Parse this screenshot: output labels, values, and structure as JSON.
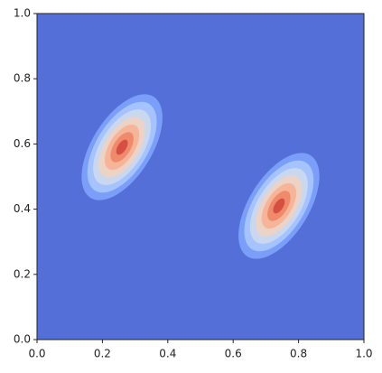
{
  "chart_data": {
    "type": "contour",
    "xlim": [
      0,
      1
    ],
    "ylim": [
      0,
      1
    ],
    "xticks": [
      {
        "value": 0,
        "label": "0.0"
      },
      0.2,
      0.4,
      0.6,
      0.8,
      {
        "value": 1,
        "label": "1.0"
      }
    ],
    "yticks": [
      {
        "value": 0,
        "label": "0.0"
      },
      0.2,
      0.4,
      0.6,
      0.8,
      {
        "value": 1,
        "label": "1.0"
      }
    ],
    "peaks": [
      {
        "x": 0.26,
        "y": 0.59
      },
      {
        "x": 0.74,
        "y": 0.41
      }
    ],
    "colors": [
      "#5470d8",
      "#7b9ff9",
      "#a5c3fe",
      "#cad8ef",
      "#ecd3c5",
      "#f6b599",
      "#ef8a6c",
      "#d55042"
    ]
  }
}
